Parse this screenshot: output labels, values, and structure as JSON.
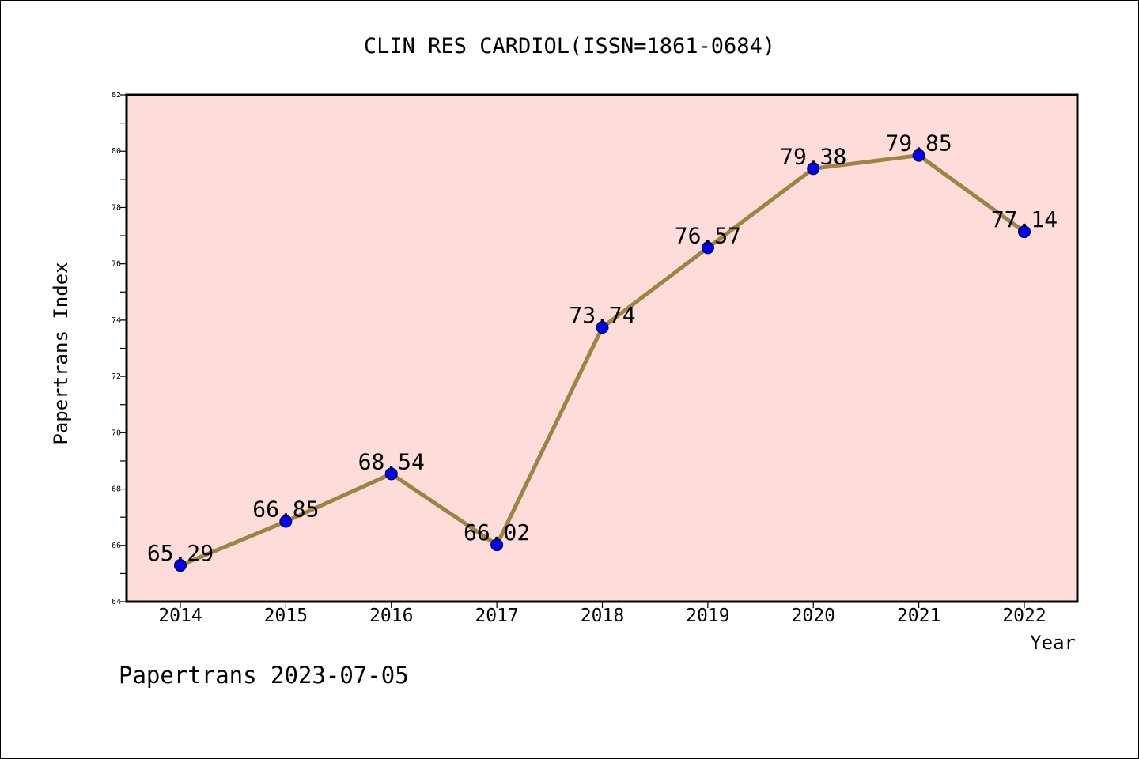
{
  "chart_data": {
    "type": "line",
    "title": "CLIN RES CARDIOL(ISSN=1861-0684)",
    "xlabel": "Year",
    "ylabel": "Papertrans Index",
    "categories": [
      "2014",
      "2015",
      "2016",
      "2017",
      "2018",
      "2019",
      "2020",
      "2021",
      "2022"
    ],
    "values": [
      65.29,
      66.85,
      68.54,
      66.02,
      73.74,
      76.57,
      79.38,
      79.85,
      77.14
    ],
    "data_labels": [
      "65.29",
      "66.85",
      "68.54",
      "66.02",
      "73.74",
      "76.57",
      "79.38",
      "79.85",
      "77.14"
    ],
    "ylim": [
      64,
      82
    ],
    "yticks": [
      "64",
      "66",
      "68",
      "70",
      "72",
      "74",
      "76",
      "78",
      "80",
      "82"
    ],
    "grid": false,
    "line_color": "#9b8540",
    "marker_color": "#0000ff",
    "plot_background": "#fddcd9"
  },
  "footer": {
    "text": "Papertrans 2023-07-05"
  }
}
